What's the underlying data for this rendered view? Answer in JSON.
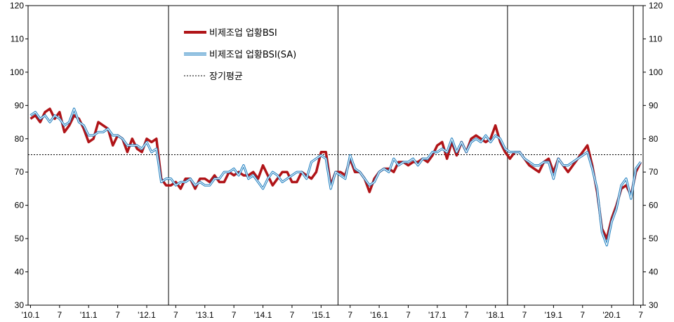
{
  "chart_data": {
    "type": "line",
    "y_left": {
      "min": 30,
      "max": 120,
      "step": 10
    },
    "y_right": {
      "min": 30,
      "max": 120,
      "step": 10
    },
    "yticks": [
      "30",
      "40",
      "50",
      "60",
      "70",
      "80",
      "90",
      "100",
      "110",
      "120"
    ],
    "x_count": 127,
    "xticks": [
      {
        "i": 0,
        "label": "'10.1"
      },
      {
        "i": 6,
        "label": "7"
      },
      {
        "i": 12,
        "label": "'11.1"
      },
      {
        "i": 18,
        "label": "7"
      },
      {
        "i": 24,
        "label": "'12.1"
      },
      {
        "i": 30,
        "label": "7"
      },
      {
        "i": 36,
        "label": "'13.1"
      },
      {
        "i": 42,
        "label": "7"
      },
      {
        "i": 48,
        "label": "'14.1"
      },
      {
        "i": 54,
        "label": "7"
      },
      {
        "i": 60,
        "label": "'15.1"
      },
      {
        "i": 66,
        "label": "7"
      },
      {
        "i": 72,
        "label": "'16.1"
      },
      {
        "i": 78,
        "label": "7"
      },
      {
        "i": 84,
        "label": "'17.1"
      },
      {
        "i": 90,
        "label": "7"
      },
      {
        "i": 96,
        "label": "'18.1"
      },
      {
        "i": 102,
        "label": "7"
      },
      {
        "i": 108,
        "label": "'19.1"
      },
      {
        "i": 114,
        "label": "7"
      },
      {
        "i": 120,
        "label": "'20.1"
      },
      {
        "i": 126,
        "label": "7"
      }
    ],
    "vlines_index": [
      28.5,
      63.5,
      98.5,
      124.5
    ],
    "long_term_average": 75.2,
    "series": [
      {
        "name": "비제조업 업황BSI",
        "color": "#b01418",
        "values": [
          86,
          87,
          85,
          88,
          89,
          86,
          88,
          82,
          84,
          87,
          86,
          83,
          79,
          80,
          85,
          84,
          83,
          78,
          81,
          80,
          76,
          80,
          77,
          76,
          80,
          79,
          80,
          68,
          66,
          66,
          67,
          65,
          68,
          68,
          65,
          68,
          68,
          67,
          69,
          67,
          67,
          70,
          69,
          70,
          69,
          69,
          70,
          68,
          72,
          69,
          66,
          68,
          70,
          70,
          67,
          67,
          70,
          69,
          68,
          70,
          76,
          76,
          66,
          70,
          70,
          69,
          74,
          70,
          70,
          68,
          64,
          68,
          70,
          71,
          71,
          70,
          73,
          73,
          72,
          73,
          73,
          74,
          73,
          75,
          78,
          79,
          74,
          79,
          75,
          79,
          76,
          80,
          81,
          80,
          79,
          80,
          84,
          79,
          76,
          74,
          76,
          76,
          74,
          72,
          71,
          70,
          73,
          74,
          70,
          74,
          72,
          70,
          72,
          74,
          76,
          78,
          72,
          64,
          53,
          50,
          56,
          60,
          65,
          66,
          63,
          70,
          73
        ]
      },
      {
        "name": "비제조업 업황BSI(SA)",
        "color": "#1f7fc0",
        "values": [
          87,
          88,
          86,
          87,
          85,
          87,
          86,
          84,
          85,
          89,
          85,
          84,
          81,
          81,
          82,
          82,
          83,
          81,
          81,
          80,
          78,
          78,
          78,
          77,
          79,
          76,
          77,
          67,
          68,
          68,
          66,
          67,
          67,
          68,
          66,
          67,
          66,
          66,
          68,
          68,
          70,
          70,
          71,
          69,
          72,
          68,
          69,
          67,
          65,
          68,
          70,
          69,
          67,
          68,
          69,
          70,
          70,
          68,
          73,
          74,
          75,
          74,
          65,
          70,
          69,
          68,
          75,
          71,
          70,
          68,
          66,
          67,
          70,
          71,
          70,
          74,
          72,
          73,
          73,
          74,
          72,
          74,
          74,
          76,
          76,
          77,
          76,
          80,
          76,
          79,
          76,
          79,
          80,
          79,
          81,
          79,
          81,
          80,
          77,
          76,
          76,
          76,
          74,
          73,
          72,
          72,
          73,
          73,
          68,
          74,
          72,
          72,
          73,
          74,
          75,
          76,
          71,
          65,
          52,
          48,
          55,
          59,
          66,
          68,
          62,
          71,
          73
        ]
      }
    ]
  },
  "legend": {
    "items": [
      {
        "label": "비제조업 업황BSI",
        "style": "thick-red"
      },
      {
        "label": "비제조업 업황BSI(SA)",
        "style": "double-blue"
      },
      {
        "label": "장기평균",
        "style": "dashed-black"
      }
    ]
  }
}
